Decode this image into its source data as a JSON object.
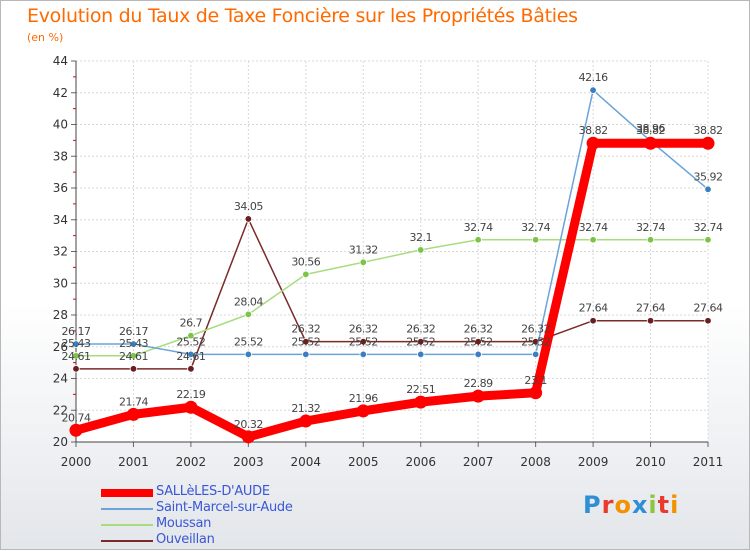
{
  "title": "Evolution du Taux de Taxe Foncière sur les Propriétés Bâties",
  "unit_label": "(en %)",
  "logo": {
    "text": "Proxiti",
    "letters": [
      {
        "ch": "P",
        "color": "#2e8fd6"
      },
      {
        "ch": "r",
        "color": "#e83b2e"
      },
      {
        "ch": "o",
        "color": "#f39200"
      },
      {
        "ch": "x",
        "color": "#2e8fd6"
      },
      {
        "ch": "i",
        "color": "#8cc63f"
      },
      {
        "ch": "t",
        "color": "#e83b2e"
      },
      {
        "ch": "i",
        "color": "#f39200"
      }
    ]
  },
  "chart_data": {
    "type": "line",
    "x": [
      "2000",
      "2001",
      "2002",
      "2003",
      "2004",
      "2005",
      "2006",
      "2007",
      "2008",
      "2009",
      "2010",
      "2011"
    ],
    "ylim": [
      20,
      44
    ],
    "yticks": [
      20,
      22,
      24,
      26,
      28,
      30,
      32,
      34,
      36,
      38,
      40,
      42,
      44
    ],
    "grid": true,
    "legend_position": "bottom-left",
    "series": [
      {
        "name": "SALLèLES-D'AUDE",
        "color": "#ff0000",
        "point_color": "#ff0000",
        "values": [
          20.74,
          21.74,
          22.19,
          20.32,
          21.32,
          21.96,
          22.51,
          22.89,
          23.1,
          38.82,
          38.82,
          38.82
        ],
        "labels": [
          "20.74",
          "21.74",
          "22.19",
          "20.32",
          "21.32",
          "21.96",
          "22.51",
          "22.89",
          "23.1",
          "38.82",
          "38.82",
          "38.82"
        ]
      },
      {
        "name": "Saint-Marcel-sur-Aude",
        "color": "#6aa4d8",
        "point_color": "#3a7fc2",
        "values": [
          26.17,
          26.17,
          25.52,
          25.52,
          25.52,
          25.52,
          25.52,
          25.52,
          25.52,
          42.16,
          38.96,
          35.92
        ],
        "labels": [
          "26.17",
          "26.17",
          "25.52",
          "25.52",
          "25.52",
          "25.52",
          "25.52",
          "25.52",
          "25.52",
          "42.16",
          "38.96",
          "35.92"
        ]
      },
      {
        "name": "Moussan",
        "color": "#a8dc80",
        "point_color": "#7cc446",
        "values": [
          25.43,
          25.43,
          26.7,
          28.04,
          30.56,
          31.32,
          32.1,
          32.74,
          32.74,
          32.74,
          32.74,
          32.74
        ],
        "labels": [
          "25.43",
          "25.43",
          "26.7",
          "28.04",
          "30.56",
          "31.32",
          "32.1",
          "32.74",
          "32.74",
          "32.74",
          "32.74",
          "32.74"
        ]
      },
      {
        "name": "Ouveillan",
        "color": "#7a2a2a",
        "point_color": "#6a1f1f",
        "values": [
          24.61,
          24.61,
          24.61,
          34.05,
          26.32,
          26.32,
          26.32,
          26.32,
          26.32,
          27.64,
          27.64,
          27.64
        ],
        "labels": [
          "24.61",
          "24.61",
          "24.61",
          "34.05",
          "26.32",
          "26.32",
          "26.32",
          "26.32",
          "26.32",
          "27.64",
          "27.64",
          "27.64"
        ]
      }
    ]
  }
}
